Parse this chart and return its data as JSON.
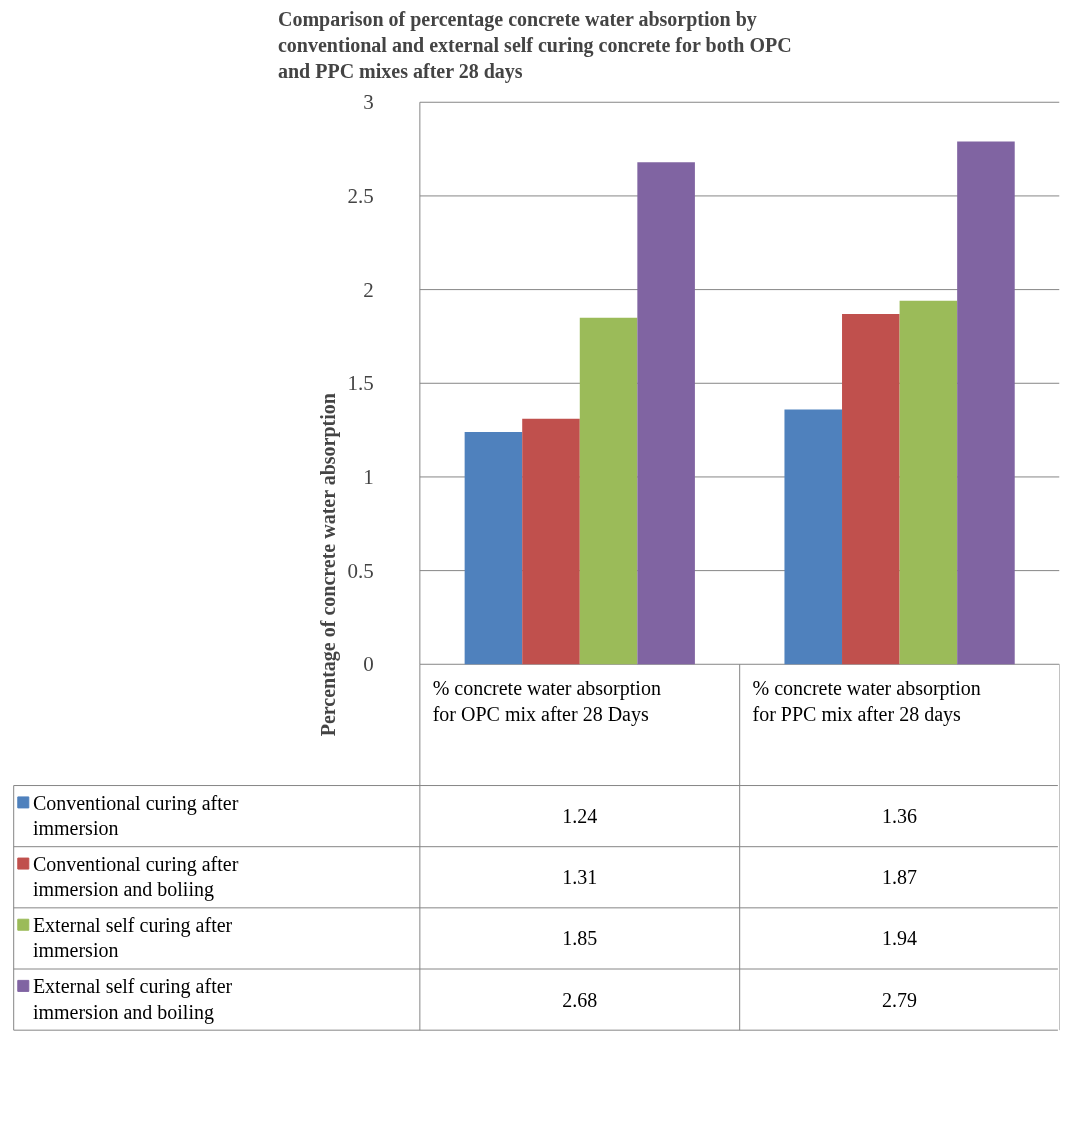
{
  "chart_data": {
    "type": "bar",
    "title": "Comparison of percentage concrete water absorption by conventional and external self curing concrete for both OPC and PPC mixes after 28 days",
    "ylabel": "Percentage  of concrete water absorption",
    "categories": [
      "% concrete water absorption for OPC mix after 28 Days",
      "% concrete water absorption for PPC mix after 28 days"
    ],
    "series": [
      {
        "name": "Conventional curing after immersion",
        "color": "#4f81bd",
        "values": [
          1.24,
          1.36
        ]
      },
      {
        "name": "Conventional curing after immersion and boliing",
        "color": "#c0504d",
        "values": [
          1.31,
          1.87
        ]
      },
      {
        "name": "External self curing after immersion",
        "color": "#9bbb59",
        "values": [
          1.85,
          1.94
        ]
      },
      {
        "name": "External self curing after immersion and boiling",
        "color": "#8064a2",
        "values": [
          2.68,
          2.79
        ]
      }
    ],
    "ylim": [
      0,
      3
    ],
    "yticks": [
      0,
      0.5,
      1,
      1.5,
      2,
      2.5,
      3
    ],
    "grid": "y",
    "legend": "bottom",
    "data_labels": true
  }
}
